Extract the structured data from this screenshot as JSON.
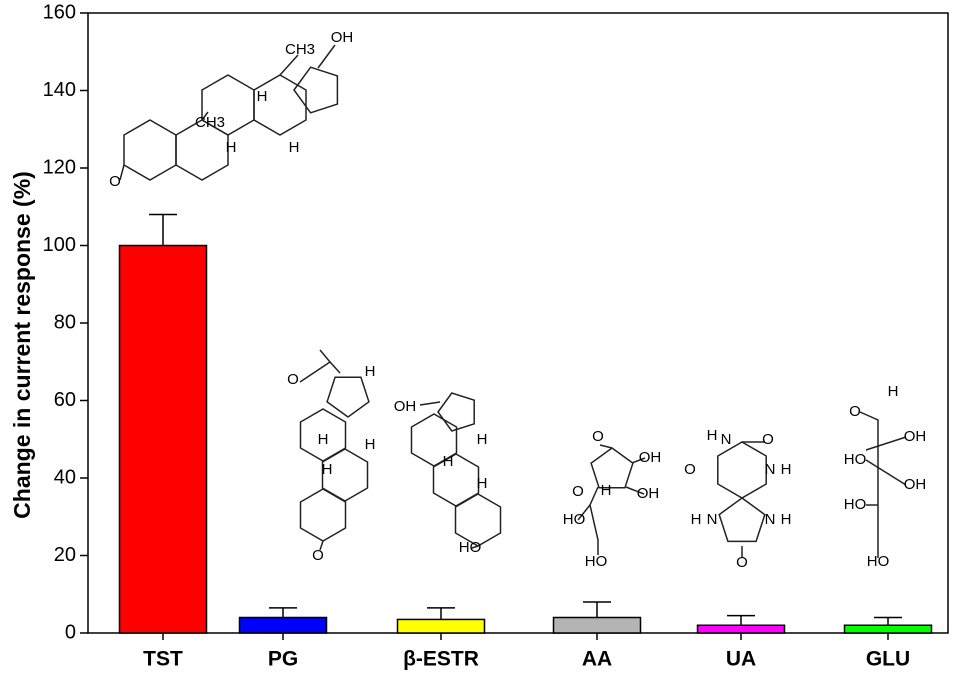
{
  "chart_data": {
    "type": "bar",
    "y_label": "Change in current response (%)",
    "categories": [
      "TST",
      "PG",
      "β-ESTR",
      "AA",
      "UA",
      "GLU"
    ],
    "values": [
      100,
      4,
      3.5,
      4,
      2,
      2
    ],
    "errors": [
      8,
      2.5,
      3,
      4,
      2.5,
      2
    ],
    "colors": [
      "#ff0000",
      "#0000ff",
      "#ffff00",
      "#b4b4b4",
      "#ff00ff",
      "#00ff00"
    ],
    "ylim": [
      0,
      160
    ],
    "yticks": [
      0,
      20,
      40,
      60,
      80,
      100,
      120,
      140,
      160
    ],
    "structure_labels": [
      [
        "CH3",
        "OH",
        "CH3",
        "H",
        "H",
        "H",
        "O"
      ],
      [
        "O",
        "H",
        "H",
        "H",
        "H",
        "O"
      ],
      [
        "OH",
        "H",
        "H",
        "H",
        "HO"
      ],
      [
        "O",
        "OH",
        "O",
        "H",
        "OH",
        "HO",
        "HO"
      ],
      [
        "O",
        "H",
        "N",
        "O",
        "N",
        "H",
        "N",
        "H",
        "N",
        "H",
        "O"
      ],
      [
        "O",
        "H",
        "OH",
        "HO",
        "OH",
        "HO",
        "HO"
      ]
    ]
  }
}
